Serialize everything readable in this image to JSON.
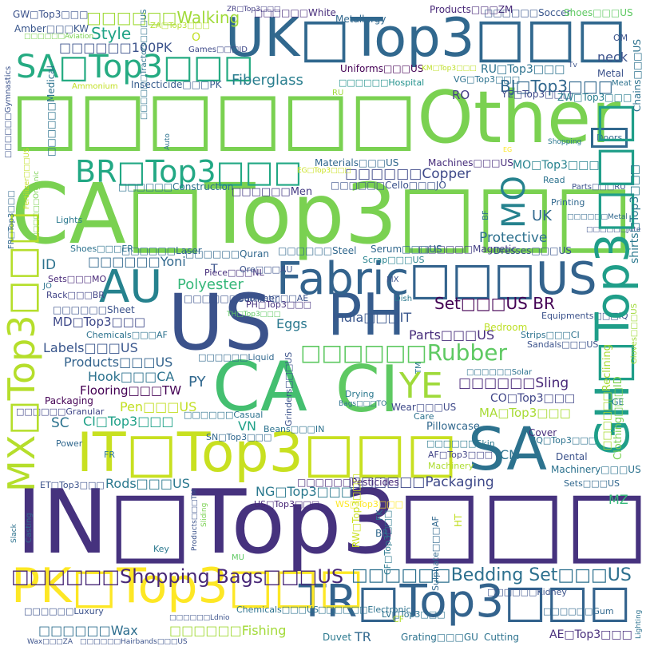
{
  "words": [
    {
      "t": "□□□□□□Other",
      "c": "#7ad151"
    },
    {
      "t": "IN□Top3□□□",
      "c": "#46327e"
    },
    {
      "t": "CA□Top3□□□",
      "c": "#7ad151"
    },
    {
      "t": "UK□Top3□□□",
      "c": "#31688e"
    },
    {
      "t": "US",
      "c": "#3b528b"
    },
    {
      "t": "PH",
      "c": "#365c8d"
    },
    {
      "t": "CI",
      "c": "#5ec962"
    },
    {
      "t": "CA",
      "c": "#44bf70"
    },
    {
      "t": "SA",
      "c": "#2c728e"
    },
    {
      "t": "TR□Top3□□□",
      "c": "#33638d"
    },
    {
      "t": "IT□Top3□□□",
      "c": "#c8e020"
    },
    {
      "t": "PK□Top3□□□",
      "c": "#fde725"
    },
    {
      "t": "Fabric□□□US",
      "c": "#33638d"
    },
    {
      "t": "GH□Top3□□□",
      "c": "#1f9e89"
    },
    {
      "t": "MX□Top3□□□",
      "c": "#b5de2b"
    },
    {
      "t": "AU",
      "c": "#26828e"
    },
    {
      "t": "SA□Top3□□□",
      "c": "#25ab82"
    },
    {
      "t": "BR□Top3□□□",
      "c": "#22a884"
    },
    {
      "t": "□□□□□□Rubber",
      "c": "#5ec962"
    },
    {
      "t": "YE",
      "c": "#9fda3a"
    },
    {
      "t": "MO",
      "c": "#26828e"
    },
    {
      "t": "□□□□□□Shopping Bags□□□US",
      "c": "#482878"
    },
    {
      "t": "□□□□□□Bedding Set□□□US",
      "c": "#2d708e"
    },
    {
      "t": "Set□□□US BR",
      "c": "#440154"
    },
    {
      "t": "□□□□□□Walking",
      "c": "#a0da39"
    },
    {
      "t": "Fiberglass",
      "c": "#287d8e"
    },
    {
      "t": "BJ□Top3□□□",
      "c": "#31688e"
    },
    {
      "t": "Style",
      "c": "#20a386"
    },
    {
      "t": "□□□□□□100PK",
      "c": "#3b528b"
    },
    {
      "t": "Polyester",
      "c": "#35b779"
    },
    {
      "t": "□□□□□□Copper",
      "c": "#3e4989"
    },
    {
      "t": "Protective",
      "c": "#2d708e"
    },
    {
      "t": "UK",
      "c": "#31688e"
    },
    {
      "t": "□□□□□□Packaging",
      "c": "#3e4989"
    },
    {
      "t": "□□□□□□Sling",
      "c": "#482878"
    },
    {
      "t": "Labels□□□US",
      "c": "#39568c"
    },
    {
      "t": "Products□□□US",
      "c": "#33638d"
    },
    {
      "t": "Hook□□□CA",
      "c": "#2c728e"
    },
    {
      "t": "Flooring□□□TW",
      "c": "#440154"
    },
    {
      "t": "Eggs",
      "c": "#2a788e"
    },
    {
      "t": "India□□□IT",
      "c": "#39568c"
    },
    {
      "t": "Parts□□□US",
      "c": "#472d7b"
    },
    {
      "t": "MD□Top3□□□",
      "c": "#3e4989"
    },
    {
      "t": "CI□Top3□□□",
      "c": "#1fa188"
    },
    {
      "t": "Pen□□□US",
      "c": "#c2df23"
    },
    {
      "t": "Rods□□□US",
      "c": "#2a788e"
    },
    {
      "t": "NG□Top3□□□",
      "c": "#2a788e"
    },
    {
      "t": "□□□□□□Fishing",
      "c": "#a2da37"
    },
    {
      "t": "□□□□□□Wax",
      "c": "#2e6e8e"
    },
    {
      "t": "□□□□□□Yoni",
      "c": "#31688e"
    },
    {
      "t": "MA□Top3□□□",
      "c": "#a8db34"
    },
    {
      "t": "CO□Top3□□□",
      "c": "#404688"
    },
    {
      "t": "AE□Top3□□□",
      "c": "#472d7b"
    },
    {
      "t": "MO□Top3□□□",
      "c": "#26828e"
    },
    {
      "t": "RU□Top3□□□",
      "c": "#2c728e"
    },
    {
      "t": "YE□Top3□□□",
      "c": "#3e4989"
    },
    {
      "t": "ZW□Top3□□□",
      "c": "#287d8e"
    },
    {
      "t": "shirts□Top3□□□",
      "c": "#2a788e"
    },
    {
      "t": "neck",
      "c": "#3b528b"
    },
    {
      "t": "CM",
      "c": "#2c728e"
    },
    {
      "t": "MZ",
      "c": "#35b779"
    },
    {
      "t": "VN",
      "c": "#1fa188"
    },
    {
      "t": "PY",
      "c": "#31688e"
    },
    {
      "t": "SC",
      "c": "#2c728e"
    },
    {
      "t": "ID",
      "c": "#2c728e"
    },
    {
      "t": "RO",
      "c": "#433e85"
    },
    {
      "t": "TR",
      "c": "#31688e"
    },
    {
      "t": "O",
      "c": "#c2df23"
    },
    {
      "t": "T",
      "c": "#3b528b"
    },
    {
      "t": "TM",
      "c": "#2a788e"
    },
    {
      "t": "GW□Top3□□□",
      "c": "#3b528b"
    },
    {
      "t": "Amber□□□KW",
      "c": "#39568c"
    },
    {
      "t": "□□□□□□White",
      "c": "#472d7b"
    },
    {
      "t": "Metallurgy",
      "c": "#31688e"
    },
    {
      "t": "Products□□□ZM",
      "c": "#482878"
    },
    {
      "t": "□□□□□□Soccer",
      "c": "#39568c"
    },
    {
      "t": "Shoes□□□US",
      "c": "#5ec962"
    },
    {
      "t": "Uniforms□□□US",
      "c": "#440154"
    },
    {
      "t": "Insecticide□□□PK",
      "c": "#365c8d"
    },
    {
      "t": "□□□□□□Hospital",
      "c": "#21918c"
    },
    {
      "t": "VG□Top3□□□",
      "c": "#2c728e"
    },
    {
      "t": "Materials□□□US",
      "c": "#31688e"
    },
    {
      "t": "Machines□□□US",
      "c": "#472d7b"
    },
    {
      "t": "□□□□□□Cello□□□JO",
      "c": "#3b528b"
    },
    {
      "t": "□□□□□□Construction",
      "c": "#2c728e"
    },
    {
      "t": "□□□□□□Men",
      "c": "#443a83"
    },
    {
      "t": "□□□□□□Laser",
      "c": "#31688e"
    },
    {
      "t": "□□□□□□Quran",
      "c": "#31688e"
    },
    {
      "t": "□□□□□□Steel",
      "c": "#31688e"
    },
    {
      "t": "□□□□□□Magnetic",
      "c": "#433e85"
    },
    {
      "t": "Serum□□□US",
      "c": "#31688e"
    },
    {
      "t": "Dresses□□□US",
      "c": "#39568c"
    },
    {
      "t": "Shoes□□□ER",
      "c": "#2c728e"
    },
    {
      "t": "Scrap□□□US",
      "c": "#26828e"
    },
    {
      "t": "Piece□□□NL",
      "c": "#472d7b"
    },
    {
      "t": "Ore□□□AU",
      "c": "#3b528b"
    },
    {
      "t": "Sets□□□MO",
      "c": "#482878"
    },
    {
      "t": "Rack□□□BR",
      "c": "#414487"
    },
    {
      "t": "□□□□□□Sheet",
      "c": "#3b528b"
    },
    {
      "t": "□□□□□□Summer",
      "c": "#3b528b"
    },
    {
      "t": "Cabinet□□□AE",
      "c": "#3b528b"
    },
    {
      "t": "PH□Top3□□□",
      "c": "#46327e"
    },
    {
      "t": "TH□Top3□□□",
      "c": "#5ec962"
    },
    {
      "t": "Chemicals□□□AF",
      "c": "#2c728e"
    },
    {
      "t": "□□□□□□Liquid",
      "c": "#31688e"
    },
    {
      "t": "Packaging",
      "c": "#440154"
    },
    {
      "t": "□□□□□□Granular",
      "c": "#404688"
    },
    {
      "t": "□□□□□□Casual",
      "c": "#2c728e"
    },
    {
      "t": "Beans□□□IN",
      "c": "#2c728e"
    },
    {
      "t": "Wear□□□US",
      "c": "#3e4989"
    },
    {
      "t": "Pillowcase",
      "c": "#31688e"
    },
    {
      "t": "Care",
      "c": "#2c728e"
    },
    {
      "t": "Cover",
      "c": "#472d7b"
    },
    {
      "t": "Dental",
      "c": "#3b528b"
    },
    {
      "t": "Power",
      "c": "#31688e"
    },
    {
      "t": "FR",
      "c": "#2a788e"
    },
    {
      "t": "ET□Top3□□□",
      "c": "#3b528b"
    },
    {
      "t": "SN□Top3□□□",
      "c": "#31688e"
    },
    {
      "t": "IQ□Top3□□□",
      "c": "#2c728e"
    },
    {
      "t": "AF□Top3□□□",
      "c": "#414487"
    },
    {
      "t": "LV□Top3□□□",
      "c": "#2c728e"
    },
    {
      "t": "US□Top3□□□",
      "c": "#482878"
    },
    {
      "t": "WS□Top3□□□",
      "c": "#fde725"
    },
    {
      "t": "RW□Top3□□□",
      "c": "#cae11f"
    },
    {
      "t": "CF□Top3□□□",
      "c": "#2a788e"
    },
    {
      "t": "□□□□□□Pesticides",
      "c": "#482878"
    },
    {
      "t": "□□□□□□Skin",
      "c": "#2a788e"
    },
    {
      "t": "Machinery□□□US",
      "c": "#2c728e"
    },
    {
      "t": "Sets□□□US",
      "c": "#31688e"
    },
    {
      "t": "Machinery",
      "c": "#addc30"
    },
    {
      "t": "□□□□□□Solar",
      "c": "#2c728e"
    },
    {
      "t": "Equipments□□□IQ",
      "c": "#3b528b"
    },
    {
      "t": "Strips□□□CI",
      "c": "#2c728e"
    },
    {
      "t": "Sandals□□□US",
      "c": "#3b528b"
    },
    {
      "t": "Bedroom",
      "c": "#bddf26"
    },
    {
      "t": "Drying",
      "c": "#2a788e"
    },
    {
      "t": "Bags□□□TO",
      "c": "#2c728e"
    },
    {
      "t": "GE",
      "c": "#2a788e"
    },
    {
      "t": "□□□□□□Electronic",
      "c": "#2c728e"
    },
    {
      "t": "□□□□□□Kidney",
      "c": "#3b528b"
    },
    {
      "t": "□□□□□□Gum",
      "c": "#31688e"
    },
    {
      "t": "Chemicals□□□US",
      "c": "#2c728e"
    },
    {
      "t": "Grating□□□GU",
      "c": "#2c728e"
    },
    {
      "t": "Cutting",
      "c": "#2c728e"
    },
    {
      "t": "Duvet",
      "c": "#2a788e"
    },
    {
      "t": "CF",
      "c": "#b5de2b"
    },
    {
      "t": "Key",
      "c": "#2a788e"
    },
    {
      "t": "MU",
      "c": "#5ec962"
    },
    {
      "t": "BR",
      "c": "#31688e"
    },
    {
      "t": "□□□□□□Ldnio",
      "c": "#3b528b"
    },
    {
      "t": "Wax□□□ZA",
      "c": "#3b528b"
    },
    {
      "t": "□□□□□□Hairbands□□□US",
      "c": "#3b528b"
    },
    {
      "t": "Lighting",
      "c": "#2c728e"
    },
    {
      "t": "Ammonium",
      "c": "#c2df23"
    },
    {
      "t": "Games□□□ID",
      "c": "#3e4989"
    },
    {
      "t": "ZA□Top3□□□",
      "c": "#b5de2b"
    },
    {
      "t": "ZR□Top3□□□",
      "c": "#433e85"
    },
    {
      "t": "KM□Top3□□□",
      "c": "#bddf26"
    },
    {
      "t": "□□□□□□Aviation",
      "c": "#7ad151"
    },
    {
      "t": "OM",
      "c": "#3b528b"
    },
    {
      "t": "Metal",
      "c": "#3b528b"
    },
    {
      "t": "Meat",
      "c": "#2c728e"
    },
    {
      "t": "Tv",
      "c": "#3b528b"
    },
    {
      "t": "RU",
      "c": "#a0da39"
    },
    {
      "t": "EG",
      "c": "#fde725"
    },
    {
      "t": "Shopping",
      "c": "#2a788e"
    },
    {
      "t": "Doors",
      "c": "#31688e"
    },
    {
      "t": "Read",
      "c": "#2c728e"
    },
    {
      "t": "Parts□□□RU",
      "c": "#3b528b"
    },
    {
      "t": "EG□Top3□□□",
      "c": "#cae11f"
    },
    {
      "t": "Printing",
      "c": "#31688e"
    },
    {
      "t": "Lights",
      "c": "#2a788e"
    },
    {
      "t": "□□□□□□Jute",
      "c": "#3b528b"
    },
    {
      "t": "□□□□□□Metal",
      "c": "#31688e"
    },
    {
      "t": "BF",
      "c": "#2c728e"
    },
    {
      "t": "Dish",
      "c": "#2a788e"
    },
    {
      "t": "MX",
      "c": "#3b528b"
    },
    {
      "t": "JO",
      "c": "#2c728e"
    },
    {
      "t": "Slack",
      "c": "#2c728e"
    },
    {
      "t": "Casting",
      "c": "#31688e"
    },
    {
      "t": "Products□□□TM",
      "c": "#3b528b"
    },
    {
      "t": "Sliding",
      "c": "#7ad151"
    },
    {
      "t": "FK",
      "c": "#2c728e"
    },
    {
      "t": "HT",
      "c": "#c2df23"
    },
    {
      "t": "Sulphate□□□AF",
      "c": "#31688e"
    },
    {
      "t": "Grinders□□□US",
      "c": "#3b528b"
    },
    {
      "t": "□□□□□□Luxury",
      "c": "#3b528b"
    },
    {
      "t": "Clothing□□□ID",
      "c": "#7ad151"
    },
    {
      "t": "□□□□□□Reclining",
      "c": "#a8db34"
    },
    {
      "t": "Gloves□□□US",
      "c": "#a0da39"
    },
    {
      "t": "Chains□□□US",
      "c": "#2c728e"
    },
    {
      "t": "□□□□□□Medical",
      "c": "#2c728e"
    },
    {
      "t": "□□□□□□Gymnastics",
      "c": "#3b528b"
    },
    {
      "t": "□□□□□□Tractors□□□US",
      "c": "#2c728e"
    },
    {
      "t": "Auto",
      "c": "#2c728e"
    },
    {
      "t": "FR□Top3□□□",
      "c": "#31688e"
    },
    {
      "t": "Fertilizer□□□US",
      "c": "#c2df23"
    },
    {
      "t": "□□□□□□Organic",
      "c": "#7ad151"
    },
    {
      "t": "Services□□□US",
      "c": "#bddf26"
    }
  ]
}
